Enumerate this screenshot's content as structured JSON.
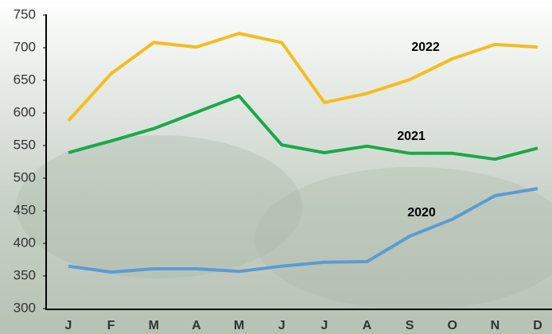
{
  "chart_data": {
    "type": "line",
    "categories": [
      "J",
      "F",
      "M",
      "A",
      "M",
      "J",
      "J",
      "A",
      "S",
      "O",
      "N",
      "D"
    ],
    "series": [
      {
        "name": "2022",
        "color": "#f5bc1c",
        "values": [
          588,
          660,
          708,
          701,
          722,
          708,
          616,
          630,
          651,
          683,
          705,
          701
        ]
      },
      {
        "name": "2021",
        "color": "#1aa84a",
        "values": [
          539,
          557,
          576,
          601,
          626,
          551,
          539,
          549,
          538,
          538,
          529,
          546
        ]
      },
      {
        "name": "2020",
        "color": "#5b9bd5",
        "values": [
          365,
          356,
          361,
          361,
          357,
          365,
          371,
          372,
          411,
          437,
          473,
          484
        ]
      }
    ],
    "ylim": [
      300,
      750
    ],
    "yticks": [
      300,
      350,
      400,
      450,
      500,
      550,
      600,
      650,
      700,
      750
    ],
    "grid": false
  }
}
